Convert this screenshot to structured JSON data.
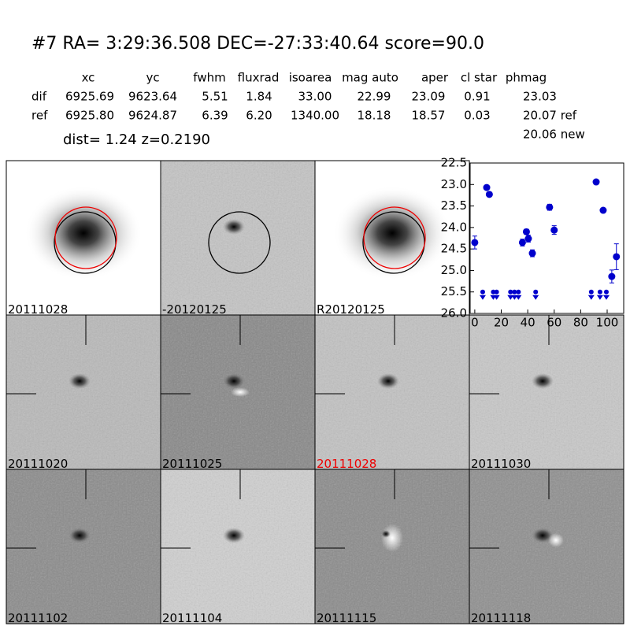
{
  "header": {
    "title": "#7   RA= 3:29:36.508 DEC=-27:33:40.64      score=90.0",
    "table": {
      "columns": [
        "xc",
        "yc",
        "fwhm",
        "fluxrad",
        "isoarea",
        "mag auto",
        "aper",
        "cl star",
        "phmag"
      ],
      "rows": [
        [
          "dif",
          "6925.69",
          "9623.64",
          "5.51",
          "1.84",
          "33.00",
          "22.99",
          "23.09",
          "0.91",
          "23.03"
        ],
        [
          "ref",
          "6925.80",
          "9624.87",
          "6.39",
          "6.20",
          "1340.00",
          "18.18",
          "18.57",
          "0.03",
          "20.07 ref"
        ]
      ],
      "extra": "20.06 new"
    },
    "dist_line": "dist=  1.24      z=0.2190"
  },
  "stamps": [
    "20111028",
    "-20120125",
    "R20120125",
    "20111020",
    "20111025",
    "20111028",
    "20111030",
    "20111102",
    "20111104",
    "20111115",
    "20111118"
  ],
  "chart_data": {
    "type": "scatter",
    "xlim": [
      -3.5,
      112.5
    ],
    "ylim": [
      26.0,
      22.5
    ],
    "xticks": [
      0,
      20,
      40,
      60,
      80,
      100
    ],
    "yticks": [
      22.5,
      {
        "value": 23,
        "label": "23.0"
      },
      23.5,
      {
        "value": 24,
        "label": "24.0"
      },
      24.5,
      {
        "value": 25,
        "label": "25.0"
      },
      25.5,
      {
        "value": 26,
        "label": "26.0"
      }
    ],
    "series": [
      {
        "color": "#0000cc",
        "marker": "circle",
        "x": [
          0,
          9,
          11,
          36,
          39,
          40.5,
          43.5,
          56.5,
          60,
          91.7,
          97,
          103.5,
          107
        ],
        "values": [
          24.35,
          23.07,
          23.23,
          24.35,
          24.1,
          24.26,
          24.6,
          23.53,
          24.06,
          22.94,
          23.6,
          25.14,
          24.68
        ],
        "errors": [
          0.15,
          0.05,
          0.05,
          0.08,
          0.06,
          0.08,
          0.08,
          0.07,
          0.1,
          0.03,
          0.04,
          0.15,
          0.3
        ]
      },
      {
        "color": "#0000cc",
        "marker": "limit",
        "x": [
          6,
          14,
          16.5,
          27,
          30,
          33,
          46,
          88,
          94.6,
          99.4
        ],
        "values": [
          25.5,
          25.5,
          25.5,
          25.5,
          25.5,
          25.5,
          25.5,
          25.5,
          25.5,
          25.5
        ]
      }
    ]
  }
}
